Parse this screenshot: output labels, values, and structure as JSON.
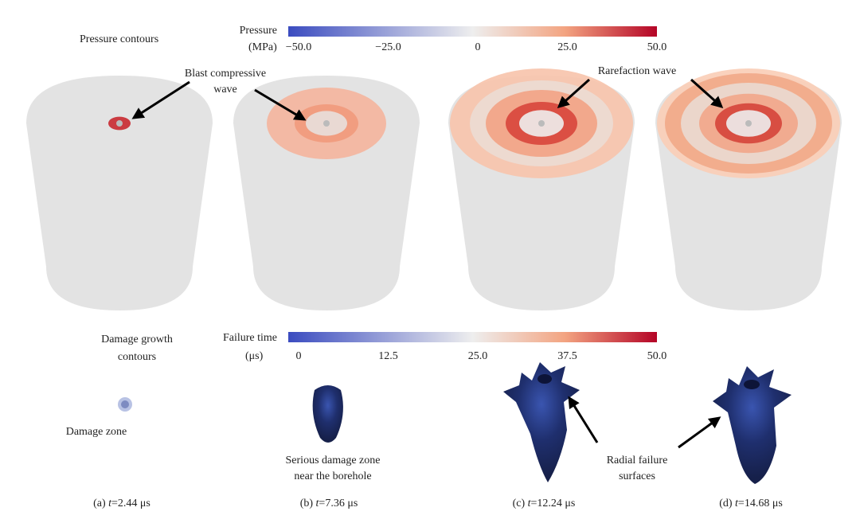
{
  "pressure": {
    "title": "Pressure contours",
    "label": "Pressure",
    "unit": "(MPa)",
    "ticks": [
      "−50.0",
      "−25.0",
      "0",
      "25.0",
      "50.0"
    ]
  },
  "damage": {
    "title": [
      "Damage growth",
      "contours"
    ],
    "label": "Failure time",
    "unit": "(μs)",
    "ticks": [
      "0",
      "12.5",
      "25.0",
      "37.5",
      "50.0"
    ]
  },
  "annotations": {
    "blast": [
      "Blast compressive",
      "wave"
    ],
    "rarefaction": "Rarefaction wave",
    "damage_zone": "Damage zone",
    "serious": [
      "Serious damage zone",
      "near the borehole"
    ],
    "radial": [
      "Radial failure",
      "surfaces"
    ]
  },
  "captions": [
    {
      "prefix": "(a) ",
      "var": "t",
      "rest": "=2.44 μs"
    },
    {
      "prefix": "(b) ",
      "var": "t",
      "rest": "=7.36 μs"
    },
    {
      "prefix": "(c) ",
      "var": "t",
      "rest": "=12.24 μs"
    },
    {
      "prefix": "(d) ",
      "var": "t",
      "rest": "=14.68 μs"
    }
  ]
}
